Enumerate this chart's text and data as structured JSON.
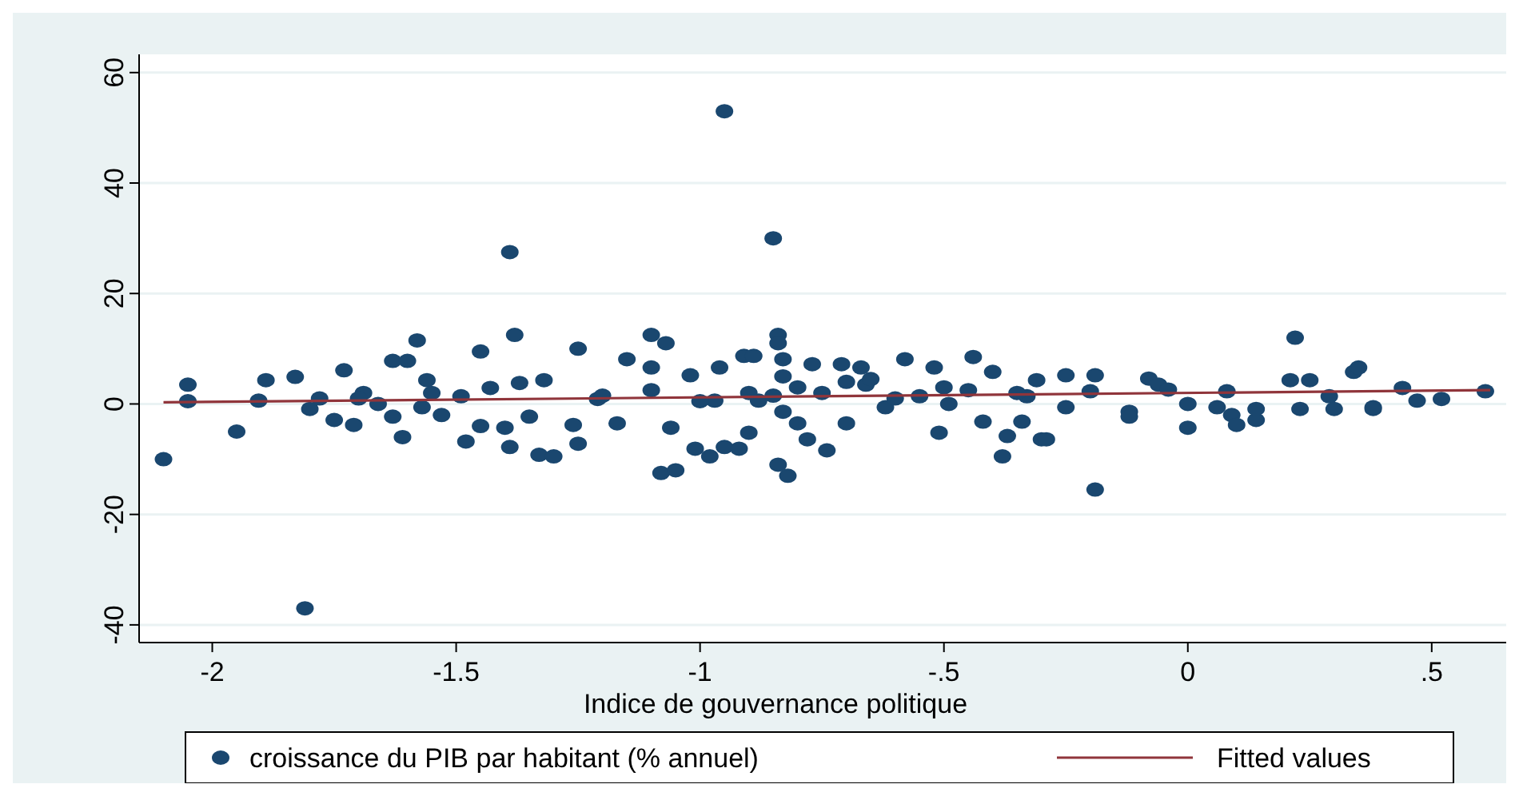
{
  "chart_data": {
    "type": "scatter",
    "xlabel": "Indice de gouvernance politique",
    "xlim": [
      -2.15,
      0.656
    ],
    "xticks": [
      -2,
      -1.5,
      -1,
      {
        "value": -0.5,
        "label": "-.5"
      },
      0,
      {
        "value": 0.5,
        "label": ".5"
      }
    ],
    "ylim": [
      -43.2,
      63.3
    ],
    "yticks": [
      -40,
      -20,
      0,
      20,
      40,
      60
    ],
    "grid": "y",
    "legend": "bottom",
    "series": [
      {
        "name": "croissance du PIB par habitant (% annuel)",
        "color": "#1a476f",
        "marker": "circle",
        "x": [
          -2.1,
          -2.05,
          -2.05,
          -1.95,
          -1.81,
          -1.39,
          -0.95,
          -0.85,
          -1.38,
          -1.58,
          -0.84,
          0.22,
          -0.19,
          -1.08,
          -0.82,
          -0.84,
          -1.45,
          -1.25,
          -1.1,
          -1.07,
          -0.44,
          -1.905,
          -1.89,
          -1.83,
          -1.8,
          -1.75,
          -1.73,
          -1.71,
          -1.69,
          -1.63,
          -1.6,
          -1.63,
          -1.61,
          -1.56,
          -1.57,
          -1.53,
          -1.48,
          -1.45,
          -1.4,
          -1.39,
          -1.43,
          -1.37,
          -1.49,
          -1.66,
          -1.35,
          -1.33,
          -1.32,
          -1.25,
          -1.26,
          -1.21,
          -1.15,
          -1.17,
          -1.1,
          -1.05,
          -1.06,
          -1.01,
          -0.98,
          -0.95,
          -0.92,
          -0.9,
          -0.96,
          -0.91,
          -0.89,
          -1.02,
          -0.97,
          -0.84,
          -0.83,
          -0.83,
          -0.8,
          -0.78,
          -0.74,
          -0.77,
          -0.71,
          -0.7,
          -0.67,
          -0.62,
          -0.58,
          -0.55,
          -0.52,
          -0.51,
          -0.49,
          -0.4,
          -0.42,
          -0.38,
          -0.37,
          -0.34,
          -0.3,
          -0.31,
          -0.33,
          -0.66,
          -0.88,
          -0.29,
          -0.25,
          -0.25,
          -0.19,
          -0.12,
          -0.08,
          -0.06,
          -0.12,
          0.0,
          0.0,
          0.06,
          0.09,
          0.1,
          0.14,
          0.14,
          0.21,
          0.23,
          0.25,
          0.29,
          0.3,
          0.34,
          0.35,
          0.38,
          0.38,
          0.44,
          0.47,
          0.52,
          0.61,
          -0.04,
          0.08,
          -0.2,
          -0.35,
          -1.3,
          -1.2,
          -1.1,
          -1.0,
          -0.9,
          -0.8,
          -0.75,
          -0.7,
          -0.6,
          -0.5,
          -0.45,
          -1.7,
          -1.78,
          -1.55,
          -0.85,
          -0.83,
          -0.65
        ],
        "values": [
          -10,
          3.5,
          0.5,
          -5,
          -37,
          27.5,
          53,
          30,
          12.5,
          11.5,
          12.5,
          12,
          -15.5,
          -12.5,
          -13,
          -11,
          9.5,
          10,
          12.5,
          11,
          8.5,
          0.6,
          4.3,
          4.9,
          -0.9,
          -2.9,
          6.1,
          -3.8,
          2,
          7.8,
          7.8,
          -2.3,
          -6,
          4.3,
          -0.6,
          -2,
          -6.8,
          -4,
          -4.3,
          -7.8,
          2.9,
          3.8,
          1.4,
          0,
          -2.3,
          -9.2,
          4.3,
          -7.2,
          -3.8,
          0.9,
          8.1,
          -3.5,
          6.6,
          -12,
          -4.3,
          -8.1,
          -9.5,
          -7.8,
          -8.1,
          -5.2,
          6.6,
          8.7,
          8.7,
          5.2,
          0.6,
          11,
          8.1,
          -1.4,
          -3.5,
          -6.4,
          -8.4,
          7.2,
          7.2,
          -3.5,
          6.6,
          -0.6,
          8.1,
          1.4,
          6.6,
          -5.2,
          0,
          5.8,
          -3.2,
          -9.5,
          -5.8,
          -3.2,
          -6.4,
          4.3,
          1.4,
          3.5,
          0.6,
          -6.4,
          5.2,
          -0.6,
          5.2,
          -1.4,
          4.6,
          3.5,
          -2.3,
          0,
          -4.3,
          -0.6,
          -2,
          -3.8,
          -2.9,
          -0.9,
          4.3,
          -0.9,
          4.3,
          1.4,
          -0.9,
          5.8,
          6.6,
          -0.9,
          -0.6,
          2.9,
          0.6,
          0.9,
          2.3,
          2.6,
          2.3,
          2.3,
          2,
          -9.5,
          1.5,
          2.5,
          0.5,
          2,
          3,
          2,
          4,
          1,
          3,
          2.5,
          1,
          1,
          2,
          1.5,
          5,
          4.5
        ]
      },
      {
        "name": "Fitted values",
        "type": "line",
        "color": "#90353b",
        "marker": "none",
        "x": [
          -2.1,
          0.62
        ],
        "values": [
          0.3,
          2.5
        ]
      }
    ]
  }
}
